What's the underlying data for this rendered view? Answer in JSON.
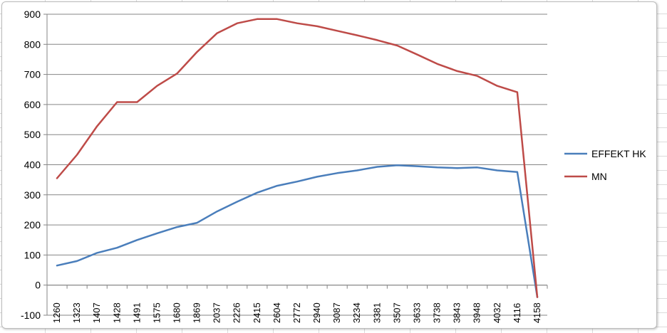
{
  "chart_data": {
    "type": "line",
    "title": "",
    "xlabel": "",
    "ylabel": "",
    "ylim": [
      -100,
      900
    ],
    "y_ticks": [
      -100,
      0,
      100,
      200,
      300,
      400,
      500,
      600,
      700,
      800,
      900
    ],
    "grid": "horizontal",
    "legend_position": "right",
    "categories": [
      "1260",
      "1323",
      "1407",
      "1428",
      "1491",
      "1575",
      "1680",
      "1869",
      "2037",
      "2226",
      "2415",
      "2604",
      "2772",
      "2940",
      "3087",
      "3234",
      "3381",
      "3507",
      "3633",
      "3738",
      "3843",
      "3948",
      "4032",
      "4116",
      "4158"
    ],
    "series": [
      {
        "name": "EFFEKT HK",
        "color": "#4A7EBB",
        "values": [
          65,
          80,
          107,
          124,
          150,
          172,
          193,
          207,
          245,
          277,
          307,
          330,
          344,
          360,
          372,
          381,
          393,
          398,
          395,
          391,
          389,
          391,
          381,
          376,
          -40
        ]
      },
      {
        "name": "MN",
        "color": "#BE4B48",
        "values": [
          355,
          433,
          528,
          608,
          608,
          662,
          703,
          775,
          837,
          870,
          884,
          884,
          870,
          860,
          845,
          830,
          814,
          796,
          766,
          735,
          711,
          695,
          662,
          641,
          -40
        ]
      }
    ]
  }
}
